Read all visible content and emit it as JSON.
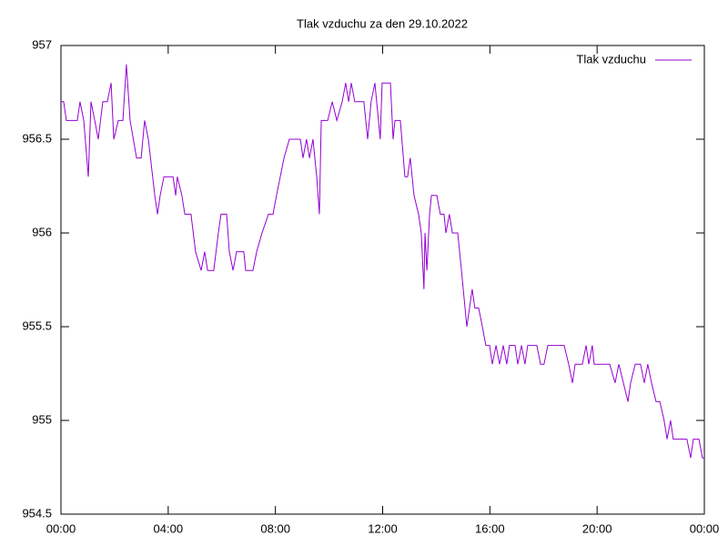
{
  "chart_data": {
    "type": "line",
    "title": "Tlak vzduchu za den 29.10.2022",
    "x": [
      0,
      0.1,
      0.2,
      0.61,
      0.71,
      0.85,
      1.02,
      1.12,
      1.26,
      1.39,
      1.56,
      1.73,
      1.87,
      1.97,
      2.14,
      2.31,
      2.44,
      2.58,
      2.82,
      2.99,
      3.12,
      3.26,
      3.5,
      3.6,
      3.7,
      3.84,
      4.18,
      4.28,
      4.34,
      4.51,
      4.62,
      4.85,
      5.02,
      5.23,
      5.36,
      5.47,
      5.7,
      5.87,
      5.97,
      6.18,
      6.28,
      6.42,
      6.55,
      6.82,
      6.89,
      7.16,
      7.3,
      7.5,
      7.74,
      7.91,
      8.04,
      8.18,
      8.32,
      8.52,
      8.93,
      9.03,
      9.16,
      9.27,
      9.4,
      9.54,
      9.64,
      9.71,
      9.95,
      10.12,
      10.29,
      10.49,
      10.62,
      10.73,
      10.83,
      10.96,
      11.3,
      11.44,
      11.57,
      11.71,
      11.91,
      11.98,
      12.29,
      12.39,
      12.46,
      12.66,
      12.83,
      12.93,
      13.03,
      13.17,
      13.34,
      13.44,
      13.54,
      13.58,
      13.65,
      13.75,
      13.82,
      14.02,
      14.15,
      14.29,
      14.36,
      14.49,
      14.6,
      14.8,
      14.94,
      15.14,
      15.24,
      15.34,
      15.44,
      15.58,
      15.72,
      15.85,
      15.99,
      16.09,
      16.23,
      16.36,
      16.5,
      16.63,
      16.73,
      16.94,
      17.04,
      17.18,
      17.31,
      17.41,
      17.75,
      17.89,
      18.02,
      18.16,
      18.77,
      18.94,
      19.08,
      19.18,
      19.45,
      19.59,
      19.69,
      19.82,
      19.89,
      20.47,
      20.67,
      20.81,
      20.98,
      21.15,
      21.25,
      21.42,
      21.62,
      21.76,
      21.89,
      22.03,
      22.2,
      22.34,
      22.5,
      22.61,
      22.74,
      22.84,
      23.35,
      23.49,
      23.59,
      23.8,
      23.93,
      24.0
    ],
    "series": [
      {
        "name": "Tlak vzduchu",
        "color": "#9400d3",
        "values": [
          956.7,
          956.7,
          956.6,
          956.6,
          956.7,
          956.6,
          956.3,
          956.7,
          956.6,
          956.5,
          956.7,
          956.7,
          956.8,
          956.5,
          956.6,
          956.6,
          956.9,
          956.6,
          956.4,
          956.4,
          956.6,
          956.5,
          956.2,
          956.1,
          956.2,
          956.3,
          956.3,
          956.2,
          956.3,
          956.2,
          956.1,
          956.1,
          955.9,
          955.8,
          955.9,
          955.8,
          955.8,
          956.0,
          956.1,
          956.1,
          955.9,
          955.8,
          955.9,
          955.9,
          955.8,
          955.8,
          955.9,
          956.0,
          956.1,
          956.1,
          956.2,
          956.3,
          956.4,
          956.5,
          956.5,
          956.4,
          956.5,
          956.4,
          956.5,
          956.3,
          956.1,
          956.6,
          956.6,
          956.7,
          956.6,
          956.7,
          956.8,
          956.7,
          956.8,
          956.7,
          956.7,
          956.5,
          956.7,
          956.8,
          956.5,
          956.8,
          956.8,
          956.5,
          956.6,
          956.6,
          956.3,
          956.3,
          956.4,
          956.2,
          956.1,
          956.0,
          955.7,
          956.0,
          955.8,
          956.1,
          956.2,
          956.2,
          956.1,
          956.1,
          956.0,
          956.1,
          956.0,
          956.0,
          955.8,
          955.5,
          955.6,
          955.7,
          955.6,
          955.6,
          955.5,
          955.4,
          955.4,
          955.3,
          955.4,
          955.3,
          955.4,
          955.3,
          955.4,
          955.4,
          955.3,
          955.4,
          955.3,
          955.4,
          955.4,
          955.3,
          955.3,
          955.4,
          955.4,
          955.3,
          955.2,
          955.3,
          955.3,
          955.4,
          955.3,
          955.4,
          955.3,
          955.3,
          955.2,
          955.3,
          955.2,
          955.1,
          955.2,
          955.3,
          955.3,
          955.2,
          955.3,
          955.2,
          955.1,
          955.1,
          955.0,
          954.9,
          955.0,
          954.9,
          954.9,
          954.8,
          954.9,
          954.9,
          954.8,
          954.8
        ]
      }
    ],
    "xlim": [
      0,
      24
    ],
    "xticks": [
      {
        "value": 0,
        "label": "00:00"
      },
      {
        "value": 4,
        "label": "04:00"
      },
      {
        "value": 8,
        "label": "08:00"
      },
      {
        "value": 12,
        "label": "12:00"
      },
      {
        "value": 16,
        "label": "16:00"
      },
      {
        "value": 20,
        "label": "20:00"
      },
      {
        "value": 24,
        "label": "00:00"
      }
    ],
    "ylim": [
      954.5,
      957
    ],
    "yticks": [
      954.5,
      955,
      955.5,
      956,
      956.5,
      957
    ],
    "legend": "top-right",
    "grid": false
  }
}
